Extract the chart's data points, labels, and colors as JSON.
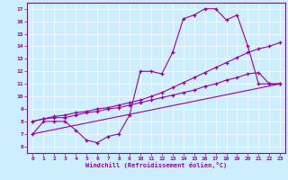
{
  "title": "",
  "xlabel": "Windchill (Refroidissement éolien,°C)",
  "background_color": "#cceeff",
  "line_color": "#990099",
  "xlim": [
    -0.5,
    23.5
  ],
  "ylim": [
    5.5,
    17.5
  ],
  "yticks": [
    6,
    7,
    8,
    9,
    10,
    11,
    12,
    13,
    14,
    15,
    16,
    17
  ],
  "xticks": [
    0,
    1,
    2,
    3,
    4,
    5,
    6,
    7,
    8,
    9,
    10,
    11,
    12,
    13,
    14,
    15,
    16,
    17,
    18,
    19,
    20,
    21,
    22,
    23
  ],
  "series1_x": [
    0,
    1,
    2,
    3,
    4,
    5,
    6,
    7,
    8,
    9,
    10,
    11,
    12,
    13,
    14,
    15,
    16,
    17,
    18,
    19,
    20,
    21,
    22,
    23
  ],
  "series1_y": [
    7.0,
    8.0,
    8.0,
    8.0,
    7.3,
    6.5,
    6.3,
    6.8,
    7.0,
    8.5,
    12.0,
    12.0,
    11.8,
    13.5,
    16.2,
    16.5,
    17.0,
    17.0,
    16.1,
    16.5,
    14.0,
    11.0,
    11.0,
    11.0
  ],
  "series2_x": [
    0,
    1,
    2,
    3,
    4,
    5,
    6,
    7,
    8,
    9,
    10,
    11,
    12,
    13,
    14,
    15,
    16,
    17,
    18,
    19,
    20,
    21,
    22,
    23
  ],
  "series2_y": [
    8.0,
    8.2,
    8.3,
    8.3,
    8.5,
    8.7,
    8.8,
    9.0,
    9.1,
    9.3,
    9.5,
    9.7,
    9.9,
    10.1,
    10.3,
    10.5,
    10.8,
    11.0,
    11.3,
    11.5,
    11.8,
    11.9,
    11.0,
    11.0
  ],
  "series3_x": [
    0,
    23
  ],
  "series3_y": [
    7.0,
    11.0
  ],
  "series4_x": [
    0,
    1,
    2,
    3,
    4,
    5,
    6,
    7,
    8,
    9,
    10,
    11,
    12,
    13,
    14,
    15,
    16,
    17,
    18,
    19,
    20,
    21,
    22,
    23
  ],
  "series4_y": [
    8.0,
    8.2,
    8.4,
    8.5,
    8.7,
    8.8,
    9.0,
    9.1,
    9.3,
    9.5,
    9.7,
    10.0,
    10.3,
    10.7,
    11.1,
    11.5,
    11.9,
    12.3,
    12.7,
    13.1,
    13.5,
    13.8,
    14.0,
    14.3
  ]
}
